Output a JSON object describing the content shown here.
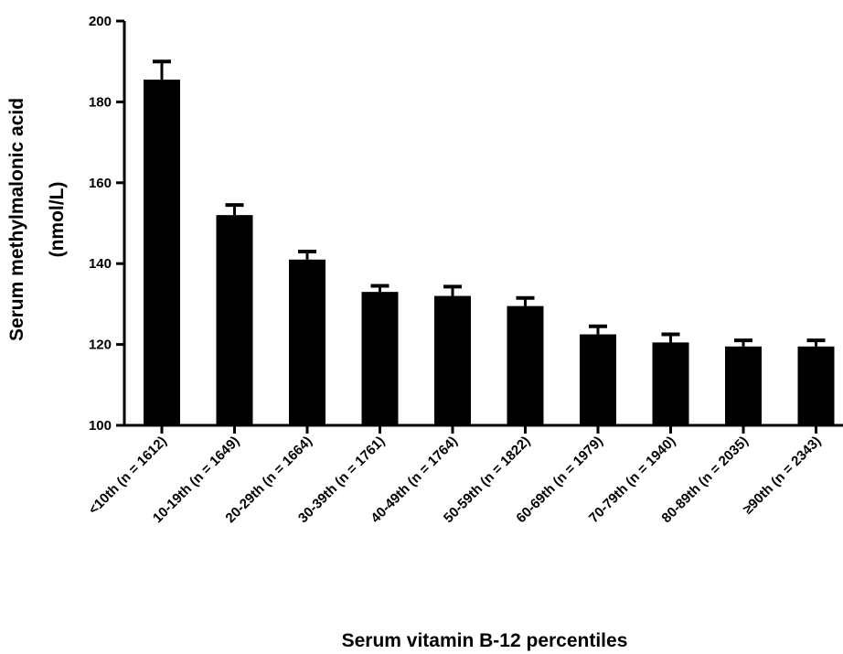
{
  "chart_data": {
    "type": "bar",
    "xlabel": "Serum vitamin B-12 percentiles",
    "ylabel_line1": "Serum methylmalonic acid",
    "ylabel_line2": "(nmol/L)",
    "ylim": [
      100,
      200
    ],
    "yticks": [
      100,
      120,
      140,
      160,
      180,
      200
    ],
    "grid": false,
    "legend": "none",
    "bar_color": "#000000",
    "categories": [
      "<10th (n = 1612)",
      "10-19th (n = 1649)",
      "20-29th (n = 1664)",
      "30-39th (n = 1761)",
      "40-49th (n = 1764)",
      "50-59th (n = 1822)",
      "60-69th (n = 1979)",
      "70-79th (n = 1940)",
      "80-89th (n = 2035)",
      "≥90th (n = 2343)"
    ],
    "values": [
      185.5,
      152.0,
      141.0,
      133.0,
      132.0,
      129.5,
      122.5,
      120.5,
      119.5,
      119.5
    ],
    "error_upper": [
      190.0,
      154.5,
      143.0,
      134.5,
      134.3,
      131.5,
      124.5,
      122.5,
      121.0,
      121.0
    ]
  }
}
